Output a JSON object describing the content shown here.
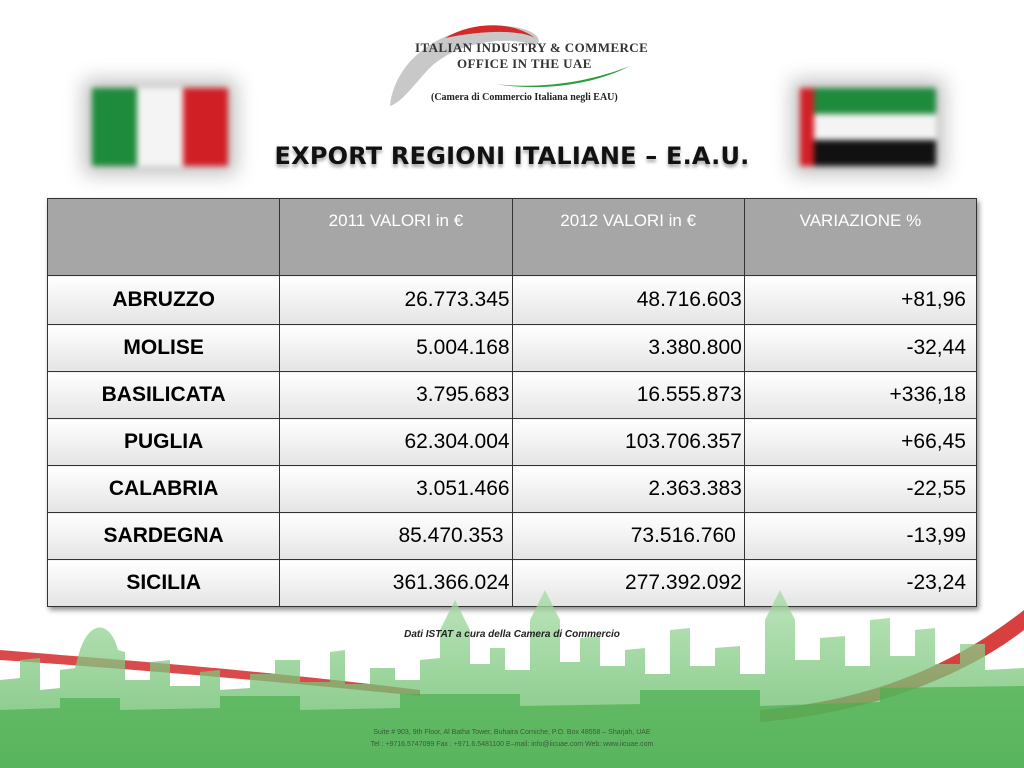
{
  "logo": {
    "line1": "ITALIAN INDUSTRY & COMMERCE",
    "line2": "OFFICE IN THE UAE",
    "subtitle": "(Camera di Commercio Italiana negli EAU)"
  },
  "flags": {
    "italy": [
      "#1e8a3c",
      "#f4f4f4",
      "#d11f26"
    ],
    "uae": [
      "#1e8a3c",
      "#f4f4f4",
      "#111111"
    ],
    "uae_hoist": "#d21f26"
  },
  "title": "EXPORT REGIONI ITALIANE – E.A.U.",
  "table": {
    "headers": [
      "",
      "2011 VALORI in €",
      "2012 VALORI in €",
      "VARIAZIONE %"
    ],
    "rows": [
      {
        "region": "ABRUZZO",
        "v2011": "26.773.345",
        "v2012": "48.716.603",
        "var": "+81,96"
      },
      {
        "region": "MOLISE",
        "v2011": "5.004.168",
        "v2012": "3.380.800",
        "var": "-32,44"
      },
      {
        "region": "BASILICATA",
        "v2011": "3.795.683",
        "v2012": "16.555.873",
        "var": "+336,18"
      },
      {
        "region": "PUGLIA",
        "v2011": "62.304.004",
        "v2012": "103.706.357",
        "var": "+66,45"
      },
      {
        "region": "CALABRIA",
        "v2011": "3.051.466",
        "v2012": "2.363.383",
        "var": "-22,55"
      },
      {
        "region": "SARDEGNA",
        "v2011": "85.470.353",
        "v2012": "73.516.760",
        "var": "-13,99"
      },
      {
        "region": "SICILIA",
        "v2011": "361.366.024",
        "v2012": "277.392.092",
        "var": "-23,24"
      }
    ]
  },
  "source": "Dati ISTAT a cura della Camera di Commercio",
  "footer": {
    "line1": "Suite # 903, 9th Floor, Al Batha Tower, Buhaira Corniche, P.O. Box 48558 – Sharjah, UAE",
    "line2": "Tel : +9716.5747099 Fax : +971.6.5481100 E–mail: info@iicuae.com Web: www.iicuae.com"
  },
  "colors": {
    "header_bg": "#a6a6a6",
    "skyline_green": "#4caf50",
    "swoosh_red": "#d42a2a"
  }
}
